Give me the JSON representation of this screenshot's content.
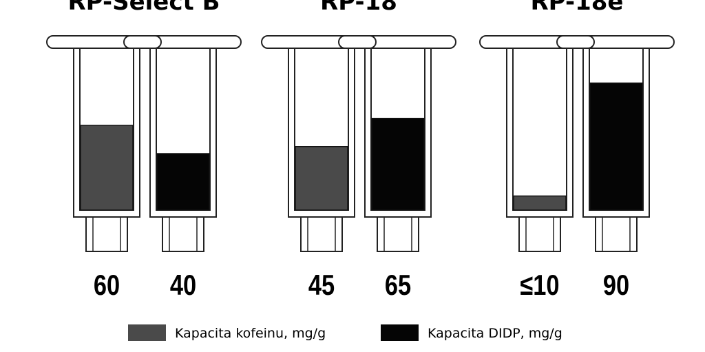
{
  "chart_data": {
    "type": "bar",
    "categories": [
      "RP-Select B",
      "RP-18",
      "RP-18e"
    ],
    "series": [
      {
        "name": "Kapacita kofeinu, mg/g",
        "color": "#4a4a4a",
        "values": [
          60,
          45,
          10
        ],
        "value_labels": [
          "60",
          "45",
          "≤10"
        ]
      },
      {
        "name": "Kapacita DIDP, mg/g",
        "color": "#050505",
        "values": [
          40,
          65,
          90
        ]
      }
    ]
  }
}
